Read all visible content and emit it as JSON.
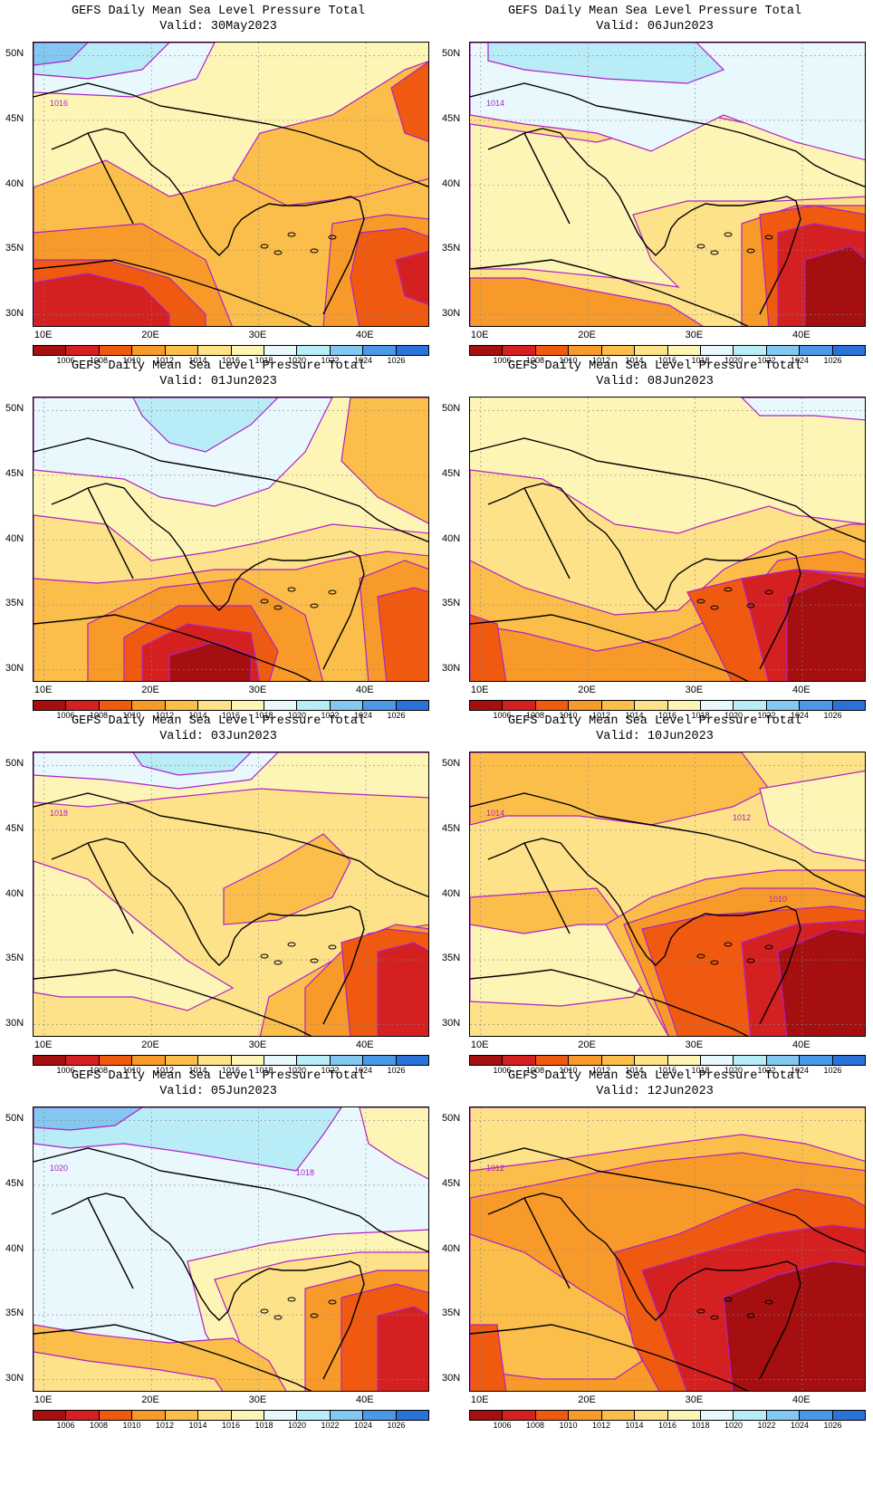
{
  "colorbar": {
    "labels": [
      "1006",
      "1008",
      "1010",
      "1012",
      "1014",
      "1016",
      "1018",
      "1020",
      "1022",
      "1024",
      "1026"
    ],
    "colors": [
      "#a50f0f",
      "#d42020",
      "#f05a10",
      "#f79a2a",
      "#fbbe4a",
      "#fde28a",
      "#fdf5b5",
      "#e8f8fc",
      "#b8ecf6",
      "#82c8f0",
      "#4a98e6",
      "#2a72d8"
    ]
  },
  "panels": [
    {
      "title": "GEFS Daily Mean Sea Level Pressure Total",
      "valid": "Valid: 30May2023",
      "contour_labels": [
        "1016"
      ],
      "base": "#fdf5b5",
      "regions": [
        {
          "c": "#fbbe4a",
          "p": "0,160 80,130 150,170 230,150 330,130 438,120 438,315 0,315"
        },
        {
          "c": "#fbbe4a",
          "p": "220,150 250,100 330,80 410,30 438,20 438,150 360,170 280,180"
        },
        {
          "c": "#f05a10",
          "p": "395,50 438,20 438,110 410,100"
        },
        {
          "c": "#f79a2a",
          "p": "0,210 120,200 190,240 220,315 0,315"
        },
        {
          "c": "#f05a10",
          "p": "0,240 80,240 150,260 190,300 190,315 0,315"
        },
        {
          "c": "#d42020",
          "p": "0,265 60,255 120,270 150,300 150,315 0,315"
        },
        {
          "c": "#f79a2a",
          "p": "330,200 390,190 438,195 438,315 320,315"
        },
        {
          "c": "#f05a10",
          "p": "360,210 410,205 438,215 438,315 360,315 350,260"
        },
        {
          "c": "#d42020",
          "p": "400,240 438,230 438,290 410,280"
        },
        {
          "c": "#b8ecf6",
          "p": "0,0 150,0 120,30 60,40 0,35"
        },
        {
          "c": "#82c8f0",
          "p": "0,0 60,0 40,20 0,25"
        },
        {
          "c": "#e8f8fc",
          "p": "0,35 60,40 120,30 150,0 200,0 180,40 110,60 0,55"
        }
      ]
    },
    {
      "title": "GEFS Daily Mean Sea Level Pressure Total",
      "valid": "Valid: 06Jun2023",
      "contour_labels": [
        "1014"
      ],
      "base": "#fde28a",
      "regions": [
        {
          "c": "#fdf5b5",
          "p": "0,90 140,110 260,80 360,100 438,120 438,170 340,175 240,175 180,190 200,240 230,270 160,260 60,250 0,250"
        },
        {
          "c": "#e8f8fc",
          "p": "0,0 438,0 438,130 360,110 280,80 200,120 140,100 60,90 0,80"
        },
        {
          "c": "#b8ecf6",
          "p": "20,0 250,0 280,30 240,45 150,40 60,30 20,20"
        },
        {
          "c": "#f79a2a",
          "p": "0,260 60,260 140,275 220,290 260,315 0,315"
        },
        {
          "c": "#f79a2a",
          "p": "300,200 360,180 438,180 438,315 300,315"
        },
        {
          "c": "#f05a10",
          "p": "320,190 380,180 438,190 438,315 330,315"
        },
        {
          "c": "#d42020",
          "p": "340,210 380,200 438,210 438,315 340,315"
        },
        {
          "c": "#a50f0f",
          "p": "370,240 420,225 438,240 438,315 370,315"
        }
      ]
    },
    {
      "title": "GEFS Daily Mean Sea Level Pressure Total",
      "valid": "Valid: 01Jun2023",
      "contour_labels": [],
      "base": "#fdf5b5",
      "regions": [
        {
          "c": "#e8f8fc",
          "p": "0,0 330,0 300,60 260,100 200,120 140,110 100,90 0,80"
        },
        {
          "c": "#b8ecf6",
          "p": "110,0 270,0 240,30 190,60 150,50 120,20"
        },
        {
          "c": "#fde28a",
          "p": "0,130 80,140 130,180 200,170 250,160 330,140 438,150 438,315 0,315"
        },
        {
          "c": "#fbbe4a",
          "p": "350,0 438,0 438,140 380,110 340,70"
        },
        {
          "c": "#fbbe4a",
          "p": "0,200 70,205 130,200 200,190 290,190 330,180 390,170 438,175 438,315 0,315"
        },
        {
          "c": "#f79a2a",
          "p": "60,250 140,210 230,200 300,240 320,315 60,315"
        },
        {
          "c": "#f05a10",
          "p": "100,265 160,230 240,230 270,280 260,315 100,315"
        },
        {
          "c": "#d42020",
          "p": "120,275 170,250 240,260 250,315 120,315"
        },
        {
          "c": "#a50f0f",
          "p": "150,285 200,270 240,285 240,315 150,315"
        },
        {
          "c": "#f79a2a",
          "p": "360,200 410,180 438,190 438,315 370,315"
        },
        {
          "c": "#f05a10",
          "p": "380,220 420,210 438,215 438,315 390,315"
        }
      ]
    },
    {
      "title": "GEFS Daily Mean Sea Level Pressure Total",
      "valid": "Valid: 08Jun2023",
      "contour_labels": [],
      "base": "#fdf5b5",
      "regions": [
        {
          "c": "#fde28a",
          "p": "0,80 80,90 160,140 230,150 260,140 330,120 360,130 438,140 438,315 0,315"
        },
        {
          "c": "#fbbe4a",
          "p": "0,180 60,210 160,240 230,235 280,190 340,160 420,140 438,140 438,315 0,315"
        },
        {
          "c": "#f79a2a",
          "p": "0,250 60,260 140,280 220,265 300,230 340,180 410,170 438,180 438,315 0,315"
        },
        {
          "c": "#f05a10",
          "p": "240,215 300,200 360,190 438,195 438,315 290,315"
        },
        {
          "c": "#d42020",
          "p": "300,200 360,190 438,200 438,315 330,315"
        },
        {
          "c": "#a50f0f",
          "p": "350,220 400,200 438,210 438,315 350,315"
        },
        {
          "c": "#f05a10",
          "p": "0,240 30,250 40,315 0,315"
        },
        {
          "c": "#e8f8fc",
          "p": "300,0 438,0 438,25 380,20 320,20"
        }
      ]
    },
    {
      "title": "GEFS Daily Mean Sea Level Pressure Total",
      "valid": "Valid: 03Jun2023",
      "contour_labels": [
        "1018"
      ],
      "base": "#fde28a",
      "regions": [
        {
          "c": "#fdf5b5",
          "p": "0,0 438,0 438,50 330,45 250,40 150,50 60,60 0,55"
        },
        {
          "c": "#fdf5b5",
          "p": "0,120 60,140 120,190 170,230 220,260 170,285 110,270 30,270 0,265"
        },
        {
          "c": "#e8f8fc",
          "p": "0,0 270,0 240,30 160,40 80,30 0,25"
        },
        {
          "c": "#b8ecf6",
          "p": "110,0 240,0 220,20 160,25 120,15"
        },
        {
          "c": "#fbbe4a",
          "p": "210,150 270,120 320,90 350,120 330,160 270,185 210,190"
        },
        {
          "c": "#fbbe4a",
          "p": "260,270 330,230 370,200 438,190 438,315 250,315"
        },
        {
          "c": "#f79a2a",
          "p": "300,260 350,210 400,190 438,195 438,315 300,315"
        },
        {
          "c": "#f05a10",
          "p": "340,210 390,195 438,200 438,315 350,315"
        },
        {
          "c": "#d42020",
          "p": "380,220 420,210 438,220 438,315 380,315"
        }
      ]
    },
    {
      "title": "GEFS Daily Mean Sea Level Pressure Total",
      "valid": "Valid: 10Jun2023",
      "contour_labels": [
        "1014",
        "1012",
        "1010"
      ],
      "base": "#fde28a",
      "regions": [
        {
          "c": "#fbbe4a",
          "p": "0,0 300,0 330,40 290,60 200,80 120,70 40,70 0,80"
        },
        {
          "c": "#fbbe4a",
          "p": "0,160 140,150 170,190 200,210 220,260 120,270 0,260"
        },
        {
          "c": "#fdf5b5",
          "p": "0,190 60,200 120,190 180,190 210,230 180,270 100,280 0,275"
        },
        {
          "c": "#fbbe4a",
          "p": "150,190 200,160 260,140 340,130 438,130 438,315 220,315"
        },
        {
          "c": "#f79a2a",
          "p": "170,190 230,170 300,150 380,150 438,160 438,315 220,315"
        },
        {
          "c": "#f05a10",
          "p": "190,195 260,180 330,175 400,170 438,175 438,315 230,315"
        },
        {
          "c": "#d42020",
          "p": "300,210 360,190 438,185 438,315 310,315"
        },
        {
          "c": "#a50f0f",
          "p": "340,220 400,195 438,200 438,315 350,315"
        },
        {
          "c": "#fdf5b5",
          "p": "320,40 380,30 438,20 438,120 380,110 330,80"
        }
      ]
    },
    {
      "title": "GEFS Daily Mean Sea Level Pressure Total",
      "valid": "Valid: 05Jun2023",
      "contour_labels": [
        "1020",
        "1018"
      ],
      "base": "#e8f8fc",
      "regions": [
        {
          "c": "#b8ecf6",
          "p": "0,0 340,0 320,30 290,70 230,60 170,50 100,40 40,45 0,40"
        },
        {
          "c": "#82c8f0",
          "p": "0,0 120,0 90,20 40,25 0,22"
        },
        {
          "c": "#fdf5b5",
          "p": "360,0 438,0 438,80 400,60 370,40"
        },
        {
          "c": "#fdf5b5",
          "p": "170,170 260,150 330,140 438,135 438,315 230,315 190,250"
        },
        {
          "c": "#fde28a",
          "p": "200,190 280,170 360,160 438,160 438,315 250,315"
        },
        {
          "c": "#fbbe4a",
          "p": "0,240 60,250 150,260 220,255 260,280 280,315 0,315"
        },
        {
          "c": "#f79a2a",
          "p": "300,200 380,180 438,180 438,315 300,315"
        },
        {
          "c": "#f05a10",
          "p": "340,210 400,195 438,205 438,315 340,315"
        },
        {
          "c": "#d42020",
          "p": "380,230 420,220 438,230 438,315 380,315"
        },
        {
          "c": "#fde28a",
          "p": "0,270 60,280 140,290 200,300 210,315 0,315"
        }
      ]
    },
    {
      "title": "GEFS Daily Mean Sea Level Pressure Total",
      "valid": "Valid: 12Jun2023",
      "contour_labels": [
        "1012"
      ],
      "base": "#fbbe4a",
      "regions": [
        {
          "c": "#fde28a",
          "p": "0,0 438,0 438,60 370,40 300,30 220,40 150,50 80,60 0,70"
        },
        {
          "c": "#f79a2a",
          "p": "0,100 100,80 200,60 300,50 360,60 438,70 438,315 0,315"
        },
        {
          "c": "#fbbe4a",
          "p": "0,140 60,160 120,200 170,230 190,280 160,300 80,300 0,290"
        },
        {
          "c": "#f05a10",
          "p": "160,160 230,140 300,110 360,90 420,100 438,110 438,315 210,315 180,260"
        },
        {
          "c": "#d42020",
          "p": "190,180 260,160 330,140 400,130 438,135 438,315 240,315"
        },
        {
          "c": "#a50f0f",
          "p": "280,210 340,185 400,170 438,175 438,315 290,315"
        },
        {
          "c": "#f05a10",
          "p": "0,240 30,240 40,315 0,315"
        }
      ]
    }
  ]
}
